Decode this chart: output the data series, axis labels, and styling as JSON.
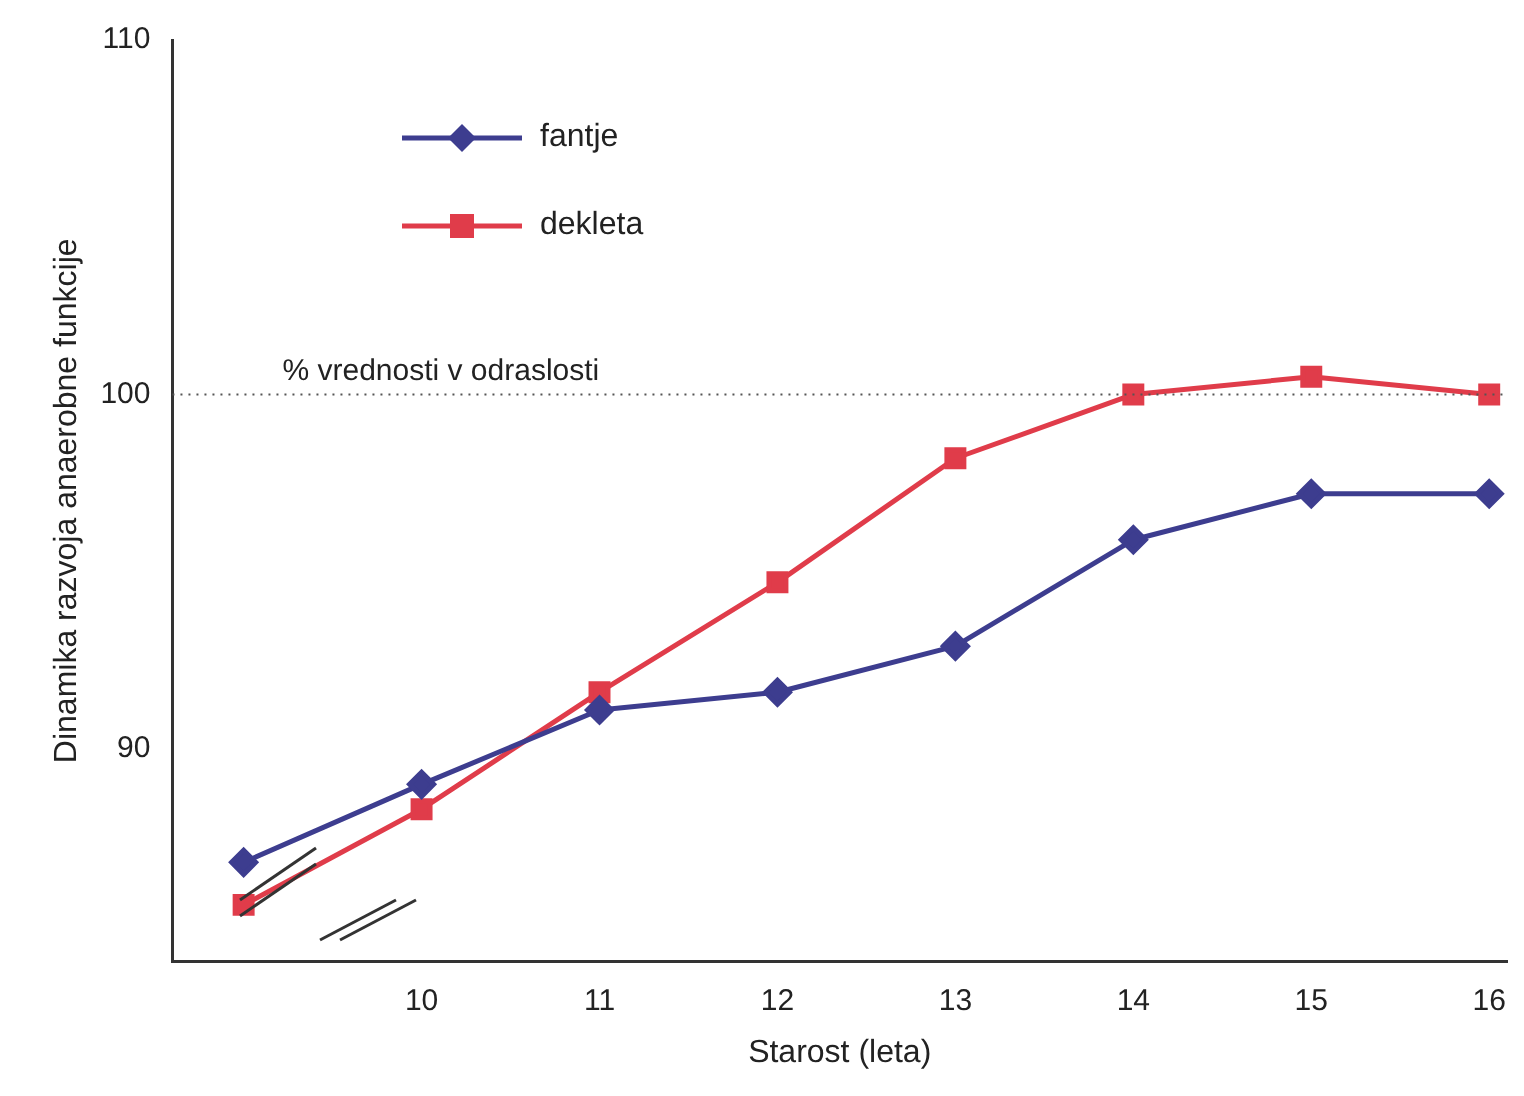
{
  "chart_data": {
    "type": "line",
    "xlabel": "Starost (leta)",
    "ylabel": "Dinamika razvoja anaerobne funkcije",
    "x": [
      9,
      10,
      11,
      12,
      13,
      14,
      15,
      16
    ],
    "series": [
      {
        "name": "fantje",
        "color": "#3d3d8f",
        "marker": "diamond",
        "values": [
          86.8,
          89.0,
          91.1,
          91.6,
          92.9,
          95.9,
          97.2,
          97.2
        ]
      },
      {
        "name": "dekleta",
        "color": "#e03c4a",
        "marker": "square",
        "values": [
          85.6,
          88.3,
          91.6,
          94.7,
          98.2,
          100,
          100.5,
          100
        ]
      }
    ],
    "xlim": [
      8.6,
      16.1
    ],
    "xticks": [
      10,
      11,
      12,
      13,
      14,
      15,
      16
    ],
    "ylim": [
      84,
      110
    ],
    "yticks": [
      90,
      100,
      110
    ],
    "ref_lines": [
      {
        "axis": "y",
        "value": 100,
        "label": "% vrednosti v odraslosti",
        "color": "#555555",
        "line_style": "dotted"
      }
    ],
    "grid": false,
    "legend": "top left",
    "line_style": "solid"
  }
}
